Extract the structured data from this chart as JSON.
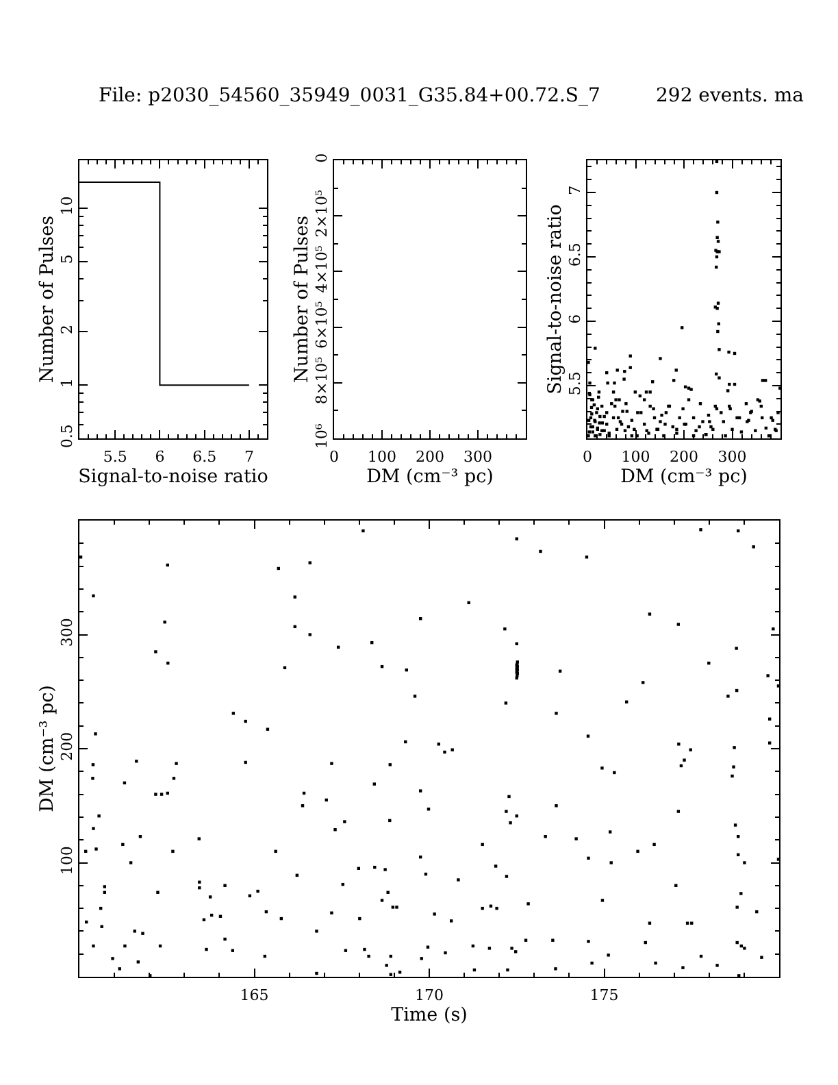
{
  "chart_data": [
    {
      "type": "histogram",
      "title": "File: p2030_54560_35949_0031_G35.84+00.72.S_7",
      "xlabel": "Signal-to-noise ratio",
      "ylabel": "Number of Pulses",
      "bins": [
        5.1,
        6,
        7
      ],
      "values": [
        14,
        1
      ],
      "color": "#000000",
      "log": true,
      "xlim": [
        5.1,
        7.2
      ],
      "ylim": [
        0.5,
        18.6
      ],
      "xticks": [
        {
          "value": 5.2,
          "label": null
        },
        {
          "value": 5.3,
          "label": null
        },
        {
          "value": 5.4,
          "label": null
        },
        5.5,
        {
          "value": 5.6,
          "label": null
        },
        {
          "value": 5.7,
          "label": null
        },
        {
          "value": 5.8,
          "label": null
        },
        {
          "value": 5.9,
          "label": null
        },
        6,
        {
          "value": 6.1,
          "label": null
        },
        {
          "value": 6.2,
          "label": null
        },
        {
          "value": 6.3,
          "label": null
        },
        {
          "value": 6.4,
          "label": null
        },
        6.5,
        {
          "value": 6.6,
          "label": null
        },
        {
          "value": 6.7,
          "label": null
        },
        {
          "value": 6.8,
          "label": null
        },
        {
          "value": 6.9,
          "label": null
        },
        7,
        {
          "value": 7.1,
          "label": null
        }
      ],
      "yticks": [
        0.5,
        {
          "value": 0.6,
          "label": null
        },
        {
          "value": 0.7,
          "label": null
        },
        {
          "value": 0.8,
          "label": null
        },
        {
          "value": 0.9,
          "label": null
        },
        1,
        2,
        {
          "value": 3,
          "label": null
        },
        {
          "value": 4,
          "label": null
        },
        5,
        {
          "value": 6,
          "label": null
        },
        {
          "value": 7,
          "label": null
        },
        {
          "value": 8,
          "label": null
        },
        {
          "value": 9,
          "label": null
        },
        10
      ]
    },
    {
      "type": "histogram",
      "xlabel": "DM (cm⁻³ pc)",
      "ylabel": "Number of Pulses",
      "xlim": [
        0,
        400
      ],
      "ylim": [
        1000000,
        0
      ],
      "xticks": [
        0,
        {
          "value": 20,
          "label": null
        },
        {
          "value": 40,
          "label": null
        },
        {
          "value": 60,
          "label": null
        },
        {
          "value": 80,
          "label": null
        },
        100,
        {
          "value": 120,
          "label": null
        },
        {
          "value": 140,
          "label": null
        },
        {
          "value": 160,
          "label": null
        },
        {
          "value": 180,
          "label": null
        },
        200,
        {
          "value": 220,
          "label": null
        },
        {
          "value": 240,
          "label": null
        },
        {
          "value": 260,
          "label": null
        },
        {
          "value": 280,
          "label": null
        },
        300,
        {
          "value": 320,
          "label": null
        },
        {
          "value": 340,
          "label": null
        },
        {
          "value": 360,
          "label": null
        },
        {
          "value": 380,
          "label": null
        }
      ],
      "yticks": [
        0,
        {
          "value": 100000,
          "label": null
        },
        {
          "value": 200000,
          "label": "2×10⁵"
        },
        {
          "value": 300000,
          "label": null
        },
        {
          "value": 400000,
          "label": "4×10⁵"
        },
        {
          "value": 500000,
          "label": null
        },
        {
          "value": 600000,
          "label": "6×10⁵"
        },
        {
          "value": 700000,
          "label": null
        },
        {
          "value": 800000,
          "label": "8×10⁵"
        },
        {
          "value": 900000,
          "label": null
        },
        {
          "value": 1000000,
          "label": "10⁶"
        }
      ]
    },
    {
      "type": "scatter",
      "title": "292 events. ma",
      "xlabel": "DM (cm⁻³ pc)",
      "ylabel": "Signal-to-noise ratio",
      "color": "#000000",
      "marker": "square",
      "xlim": [
        0,
        400
      ],
      "ylim": [
        5.09,
        7.25
      ],
      "x": [
        268,
        268,
        270,
        269,
        271,
        266,
        269,
        273,
        268,
        267,
        265,
        271,
        269,
        272,
        270,
        273,
        267,
        273,
        265,
        268,
        16,
        2,
        5,
        40,
        42,
        56,
        62,
        76,
        77,
        89,
        89,
        151,
        184,
        179,
        196,
        203,
        215,
        135,
        291,
        294,
        305,
        363,
        369,
        399,
        24,
        122,
        99,
        109,
        130,
        293,
        305,
        210,
        5,
        9,
        14,
        21,
        9,
        26,
        3,
        16,
        31,
        7,
        21,
        35,
        11,
        26,
        2,
        45,
        40,
        50,
        54,
        59,
        64,
        71,
        78,
        82,
        92,
        97,
        103,
        111,
        118,
        127,
        130,
        139,
        144,
        151,
        158,
        163,
        170,
        177,
        185,
        191,
        198,
        204,
        210,
        220,
        225,
        234,
        239,
        245,
        251,
        256,
        277,
        282,
        286,
        296,
        300,
        310,
        319,
        329,
        334,
        340,
        348,
        357,
        362,
        370,
        376,
        384,
        391,
        395,
        4,
        11,
        23,
        30,
        8.5,
        19,
        35,
        7,
        15,
        25,
        40,
        11,
        21,
        30,
        4,
        45,
        16,
        54,
        61,
        68,
        57,
        73,
        80,
        66,
        85,
        92,
        104,
        118,
        123,
        137,
        146,
        154,
        161,
        168,
        185,
        201,
        220,
        232,
        246,
        253,
        260,
        294,
        315,
        331,
        338,
        353,
        360,
        381,
        389
      ],
      "values": [
        7.24,
        7.0,
        6.77,
        6.65,
        6.62,
        6.55,
        6.54,
        6.54,
        6.5,
        6.42,
        6.11,
        6.14,
        6.1,
        5.98,
        5.92,
        5.78,
        5.59,
        5.56,
        5.34,
        5.32,
        5.79,
        5.68,
        5.52,
        5.6,
        5.52,
        5.52,
        5.62,
        5.55,
        5.61,
        5.64,
        5.73,
        5.71,
        5.62,
        5.54,
        5.95,
        5.49,
        5.47,
        5.53,
        5.46,
        5.51,
        5.51,
        5.54,
        5.54,
        5.48,
        5.45,
        5.45,
        5.45,
        5.42,
        5.45,
        5.76,
        5.75,
        5.48,
        5.43,
        5.39,
        5.35,
        5.32,
        5.28,
        5.26,
        5.23,
        5.22,
        5.21,
        5.18,
        5.17,
        5.15,
        5.14,
        5.12,
        5.11,
        5.11,
        5.29,
        5.36,
        5.45,
        5.39,
        5.25,
        5.2,
        5.15,
        5.3,
        5.23,
        5.16,
        5.11,
        5.29,
        5.2,
        5.13,
        5.34,
        5.25,
        5.16,
        5.22,
        5.11,
        5.29,
        5.34,
        5.18,
        5.13,
        5.25,
        5.32,
        5.2,
        5.39,
        5.25,
        5.15,
        5.36,
        5.22,
        5.12,
        5.27,
        5.18,
        5.29,
        5.22,
        5.11,
        5.32,
        5.16,
        5.25,
        5.14,
        5.36,
        5.23,
        5.3,
        5.15,
        5.38,
        5.25,
        5.17,
        5.11,
        5.23,
        5.15,
        5.29,
        5.44,
        5.39,
        5.41,
        5.34,
        5.33,
        5.29,
        5.26,
        5.25,
        5.23,
        5.21,
        5.2,
        5.18,
        5.16,
        5.15,
        5.14,
        5.13,
        5.11,
        5.25,
        5.16,
        5.22,
        5.34,
        5.3,
        5.36,
        5.39,
        5.18,
        5.11,
        5.29,
        5.39,
        5.15,
        5.32,
        5.16,
        5.27,
        5.2,
        5.34,
        5.16,
        5.2,
        5.11,
        5.18,
        5.12,
        5.22,
        5.16,
        5.34,
        5.25,
        5.22,
        5.29,
        5.39,
        5.34,
        5.25,
        5.16
      ],
      "xticks": [
        0,
        {
          "value": 20,
          "label": null
        },
        {
          "value": 40,
          "label": null
        },
        {
          "value": 60,
          "label": null
        },
        {
          "value": 80,
          "label": null
        },
        100,
        {
          "value": 120,
          "label": null
        },
        {
          "value": 140,
          "label": null
        },
        {
          "value": 160,
          "label": null
        },
        {
          "value": 180,
          "label": null
        },
        200,
        {
          "value": 220,
          "label": null
        },
        {
          "value": 240,
          "label": null
        },
        {
          "value": 260,
          "label": null
        },
        {
          "value": 280,
          "label": null
        },
        300,
        {
          "value": 320,
          "label": null
        },
        {
          "value": 340,
          "label": null
        },
        {
          "value": 360,
          "label": null
        },
        {
          "value": 380,
          "label": null
        }
      ],
      "yticks": [
        {
          "value": 5.2,
          "label": null
        },
        {
          "value": 5.3,
          "label": null
        },
        {
          "value": 5.4,
          "label": null
        },
        5.5,
        {
          "value": 5.6,
          "label": null
        },
        {
          "value": 5.7,
          "label": null
        },
        {
          "value": 5.8,
          "label": null
        },
        {
          "value": 5.9,
          "label": null
        },
        6,
        {
          "value": 6.1,
          "label": null
        },
        {
          "value": 6.2,
          "label": null
        },
        {
          "value": 6.3,
          "label": null
        },
        {
          "value": 6.4,
          "label": null
        },
        6.5,
        {
          "value": 6.6,
          "label": null
        },
        {
          "value": 6.7,
          "label": null
        },
        {
          "value": 6.8,
          "label": null
        },
        {
          "value": 6.9,
          "label": null
        },
        7,
        {
          "value": 7.1,
          "label": null
        },
        {
          "value": 7.2,
          "label": null
        }
      ]
    },
    {
      "type": "scatter",
      "xlabel": "Time (s)",
      "ylabel": "DM (cm⁻³ pc)",
      "color": "#000000",
      "marker": "square",
      "xlim": [
        160,
        180
      ],
      "ylim": [
        0,
        400
      ],
      "x": [
        160.04,
        160.4,
        162.52,
        162.44,
        162.18,
        162.53,
        160.46,
        160.39,
        160.38,
        161.63,
        161.29,
        162.77,
        162.7,
        162.18,
        162.35,
        162.52,
        160.56,
        160.4,
        160.18,
        160.48,
        161.24,
        161.74,
        161.47,
        162.67,
        160.72,
        160.72,
        162.24,
        160.61,
        160.2,
        160.64,
        161.58,
        161.81,
        160.4,
        161.3,
        162.31,
        160.95,
        161.15,
        161.68,
        162.02,
        163.42,
        163.43,
        163.43,
        163.56,
        163.74,
        163.78,
        164.03,
        164.16,
        164.16,
        163.63,
        164.38,
        164.4,
        164.75,
        164.75,
        164.87,
        165.1,
        165.38,
        165.34,
        165.3,
        165.61,
        165.69,
        165.77,
        165.87,
        166.16,
        166.16,
        166.22,
        166.42,
        166.38,
        166.59,
        166.59,
        166.78,
        166.78,
        167.06,
        167.21,
        167.21,
        167.31,
        167.4,
        167.53,
        167.58,
        167.61,
        167.98,
        168.01,
        168.11,
        168.15,
        168.27,
        168.36,
        168.43,
        168.44,
        168.65,
        168.74,
        168.65,
        168.82,
        168.87,
        168.88,
        168.96,
        169.07,
        168.78,
        168.9,
        168.9,
        169.16,
        169.35,
        169.32,
        169.59,
        169.75,
        169.75,
        169.75,
        169.78,
        169.9,
        169.98,
        169.96,
        170.15,
        170.27,
        170.44,
        170.66,
        170.46,
        170.63,
        170.83,
        171.13,
        171.25,
        171.29,
        171.52,
        171.52,
        171.72,
        171.76,
        171.93,
        171.9,
        172.16,
        172.19,
        172.21,
        172.2,
        172.28,
        172.32,
        172.5,
        172.36,
        172.47,
        172.24,
        172.5,
        172.5,
        172.5,
        172.51,
        172.52,
        172.5,
        172.51,
        172.52,
        172.5,
        172.51,
        172.52,
        172.5,
        172.51,
        172.52,
        172.76,
        172.83,
        173.18,
        173.32,
        173.53,
        173.61,
        173.63,
        173.63,
        173.74,
        174.2,
        174.5,
        174.54,
        174.55,
        174.55,
        174.65,
        174.94,
        174.95,
        175.12,
        175.17,
        175.2,
        175.29,
        175.64,
        175.96,
        176.11,
        176.18,
        176.3,
        176.3,
        176.43,
        176.47,
        177.05,
        177.12,
        177.13,
        177.12,
        177.2,
        177.29,
        177.47,
        177.25,
        177.38,
        177.5,
        177.76,
        177.77,
        177.99,
        178.23,
        178.54,
        178.78,
        178.79,
        178.72,
        178.7,
        178.66,
        178.75,
        178.83,
        178.83,
        179.01,
        178.91,
        178.8,
        178.83,
        179.27,
        178.8,
        178.92,
        179.01,
        178.85,
        179.36,
        179.5,
        179.68,
        179.73,
        179.73,
        179.83,
        179.98,
        179.98
      ],
      "values": [
        368,
        334,
        361,
        311,
        285,
        275,
        213,
        186,
        174,
        189,
        170,
        187,
        174,
        160,
        160,
        161,
        141,
        130,
        110,
        112,
        116,
        123,
        100,
        110,
        79,
        74,
        74,
        60,
        48,
        44,
        40,
        38,
        27,
        27,
        27,
        16,
        7,
        13,
        1,
        121,
        83,
        78,
        50,
        70,
        54,
        53,
        80,
        33,
        24,
        23,
        231,
        224,
        188,
        71,
        75,
        217,
        57,
        18,
        110,
        358,
        51,
        271,
        333,
        307,
        89,
        161,
        150,
        363,
        300,
        40,
        3,
        155,
        187,
        56,
        129,
        289,
        81,
        136,
        23,
        95,
        51,
        391,
        24,
        18,
        293,
        169,
        96,
        272,
        94,
        67,
        74,
        137,
        186,
        61,
        61,
        10,
        18,
        2,
        4,
        269,
        206,
        246,
        314,
        163,
        105,
        16,
        90,
        147,
        26,
        55,
        204,
        197,
        199,
        21,
        49,
        85,
        328,
        27,
        6,
        116,
        60,
        25,
        62,
        60,
        97,
        305,
        240,
        88,
        145,
        158,
        135,
        141,
        25,
        22,
        6,
        384,
        292,
        262,
        264,
        266,
        267,
        268,
        269,
        270,
        271,
        272,
        273,
        274,
        276,
        32,
        64,
        373,
        123,
        32,
        7,
        231,
        150,
        268,
        121,
        368,
        211,
        104,
        31,
        12,
        183,
        67,
        19,
        127,
        100,
        179,
        241,
        110,
        258,
        30,
        318,
        47,
        116,
        12,
        80,
        309,
        204,
        145,
        185,
        190,
        199,
        8,
        47,
        47,
        392,
        18,
        275,
        10,
        246,
        288,
        251,
        201,
        184,
        176,
        133,
        123,
        107,
        100,
        73,
        61,
        391,
        377,
        30,
        27,
        25,
        1,
        57,
        17,
        264,
        226,
        205,
        305,
        255,
        103
      ],
      "xticks": [
        {
          "value": 161,
          "label": null
        },
        {
          "value": 162,
          "label": null
        },
        {
          "value": 163,
          "label": null
        },
        {
          "value": 164,
          "label": null
        },
        165,
        {
          "value": 166,
          "label": null
        },
        {
          "value": 167,
          "label": null
        },
        {
          "value": 168,
          "label": null
        },
        {
          "value": 169,
          "label": null
        },
        170,
        {
          "value": 171,
          "label": null
        },
        {
          "value": 172,
          "label": null
        },
        {
          "value": 173,
          "label": null
        },
        {
          "value": 174,
          "label": null
        },
        175,
        {
          "value": 176,
          "label": null
        },
        {
          "value": 177,
          "label": null
        },
        {
          "value": 178,
          "label": null
        },
        {
          "value": 179,
          "label": null
        }
      ],
      "yticks": [
        {
          "value": 20,
          "label": null
        },
        {
          "value": 40,
          "label": null
        },
        {
          "value": 60,
          "label": null
        },
        {
          "value": 80,
          "label": null
        },
        100,
        {
          "value": 120,
          "label": null
        },
        {
          "value": 140,
          "label": null
        },
        {
          "value": 160,
          "label": null
        },
        {
          "value": 180,
          "label": null
        },
        200,
        {
          "value": 220,
          "label": null
        },
        {
          "value": 240,
          "label": null
        },
        {
          "value": 260,
          "label": null
        },
        {
          "value": 280,
          "label": null
        },
        300,
        {
          "value": 320,
          "label": null
        },
        {
          "value": 340,
          "label": null
        },
        {
          "value": 360,
          "label": null
        },
        {
          "value": 380,
          "label": null
        }
      ]
    }
  ]
}
